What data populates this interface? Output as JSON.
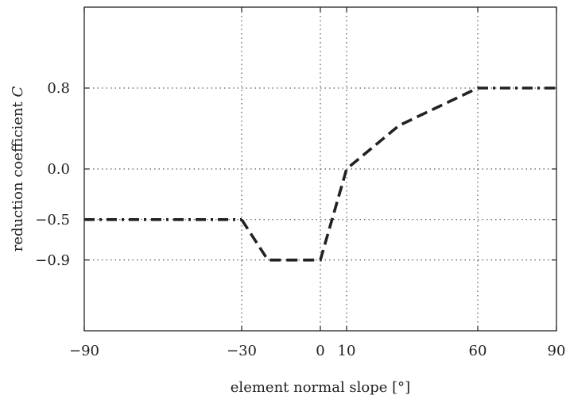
{
  "chart_data": {
    "type": "line",
    "xlabel": "element normal slope [°]",
    "ylabel_text": "reduction coefficient ",
    "ylabel_symbol": "C",
    "xlim": [
      -90,
      90
    ],
    "ylim": [
      -1.6,
      1.6
    ],
    "x_ticks": [
      {
        "value": -90,
        "label": "−90"
      },
      {
        "value": -30,
        "label": "−30"
      },
      {
        "value": 0,
        "label": "0"
      },
      {
        "value": 10,
        "label": "10"
      },
      {
        "value": 60,
        "label": "60"
      },
      {
        "value": 90,
        "label": "90"
      }
    ],
    "y_ticks": [
      {
        "value": 0.8,
        "label": "0.8"
      },
      {
        "value": 0.0,
        "label": "0.0"
      },
      {
        "value": -0.5,
        "label": "−0.5"
      },
      {
        "value": -0.9,
        "label": "−0.9"
      }
    ],
    "grid": true,
    "series": [
      {
        "line_style": "dash-dot",
        "x": [
          -90,
          -30
        ],
        "y": [
          -0.5,
          -0.5
        ]
      },
      {
        "line_style": "dashed",
        "x": [
          -30,
          -20,
          0,
          10,
          30,
          60
        ],
        "y": [
          -0.5,
          -0.9,
          -0.9,
          0.0,
          0.43,
          0.8
        ]
      },
      {
        "line_style": "dash-dot",
        "x": [
          60,
          90
        ],
        "y": [
          0.8,
          0.8
        ]
      }
    ]
  }
}
